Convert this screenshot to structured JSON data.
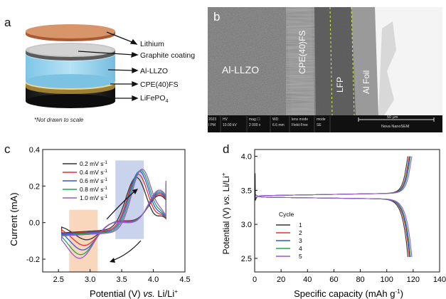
{
  "panel_a": {
    "letter": "a",
    "layers": [
      {
        "label": "Lithium"
      },
      {
        "label": "Graphite coating"
      },
      {
        "label": "Al-LLZO"
      },
      {
        "label": "CPE(40)FS"
      },
      {
        "label": "LiFePO",
        "sub": "4"
      }
    ],
    "note": "*Not drawn to scale"
  },
  "panel_b": {
    "letter": "b",
    "regions": [
      "Al-LLZO",
      "CPE(40)FS",
      "LFP",
      "Al Foil"
    ],
    "databar": {
      "col1": [
        "2023",
        "l PM"
      ],
      "col2": [
        "HV",
        "10.00 kV"
      ],
      "col3": [
        "mag ☐",
        "2 000 x"
      ],
      "col4": [
        "WD",
        "6.6 mm"
      ],
      "col5": [
        "lens mode",
        "Field-Free"
      ],
      "col6": [
        "mode",
        "SE"
      ],
      "scale": "50 μm",
      "instrument": "Nova NanoSEM"
    }
  },
  "panel_c": {
    "letter": "c",
    "chart_data": {
      "type": "line",
      "xlabel_main": "Potential (V) ",
      "xlabel_vs": "vs.",
      "xlabel_tail": " Li/Li",
      "xlabel_sup": "+",
      "ylabel": "Current  (mA)",
      "xlim": [
        2.25,
        4.5
      ],
      "ylim": [
        -0.27,
        0.4
      ],
      "xticks": [
        "2.5",
        "3.0",
        "3.5",
        "4.0",
        "4.5"
      ],
      "xtick_values": [
        2.5,
        3.0,
        3.5,
        4.0,
        4.5
      ],
      "yticks": [
        "-0.2",
        "0.0",
        "0.2",
        "0.4"
      ],
      "ytick_values": [
        -0.2,
        0.0,
        0.2,
        0.4
      ],
      "legend_placement": "top-left",
      "unit_suffix": " mV s",
      "unit_sup": "-1",
      "highlight_regions": [
        {
          "x0": 2.67,
          "x1": 3.12,
          "y0": -0.27,
          "y1": 0.07,
          "color": "#f7c9a6"
        },
        {
          "x0": 3.4,
          "x1": 3.85,
          "y0": -0.09,
          "y1": 0.34,
          "color": "#b7c4e6"
        }
      ],
      "series": [
        {
          "name": "0.2",
          "color": "#333333",
          "peak_ox": 0.28,
          "peak_red": -0.1,
          "Eox": 3.73,
          "Ered": 2.97
        },
        {
          "name": "0.4",
          "color": "#e8312f",
          "peak_ox": 0.3,
          "peak_red": -0.125,
          "Eox": 3.76,
          "Ered": 2.93
        },
        {
          "name": "0.6",
          "color": "#3355dd",
          "peak_ox": 0.32,
          "peak_red": -0.145,
          "Eox": 3.78,
          "Ered": 2.9
        },
        {
          "name": "0.8",
          "color": "#1fa84a",
          "peak_ox": 0.33,
          "peak_red": -0.165,
          "Eox": 3.8,
          "Ered": 2.87
        },
        {
          "name": "1.0",
          "color": "#9b59d0",
          "peak_ox": 0.34,
          "peak_red": -0.18,
          "Eox": 3.82,
          "Ered": 2.85
        }
      ]
    }
  },
  "panel_d": {
    "letter": "d",
    "chart_data": {
      "type": "line",
      "xlabel_main": "Specific capacity (mAh g",
      "xlabel_sup": "-1",
      "xlabel_tail": ")",
      "ylabel_main": "Potential (V) ",
      "ylabel_vs": "vs.",
      "ylabel_tail": " Li/Li",
      "ylabel_sup": "+",
      "xlim": [
        0,
        140
      ],
      "ylim": [
        2.3,
        4.1
      ],
      "xticks": [
        "0",
        "20",
        "40",
        "60",
        "80",
        "100",
        "120",
        "140"
      ],
      "xtick_values": [
        0,
        20,
        40,
        60,
        80,
        100,
        120,
        140
      ],
      "yticks": [
        "2.5",
        "3.0",
        "3.5",
        "4.0"
      ],
      "ytick_values": [
        2.5,
        3.0,
        3.5,
        4.0
      ],
      "legend_title": "Cycle",
      "legend_placement": "center-left",
      "series": [
        {
          "name": "1",
          "color": "#333333",
          "cap": 116
        },
        {
          "name": "2",
          "color": "#e8312f",
          "cap": 117
        },
        {
          "name": "3",
          "color": "#3355dd",
          "cap": 117.5
        },
        {
          "name": "4",
          "color": "#1fa84a",
          "cap": 118
        },
        {
          "name": "5",
          "color": "#9b59d0",
          "cap": 119
        }
      ]
    }
  }
}
